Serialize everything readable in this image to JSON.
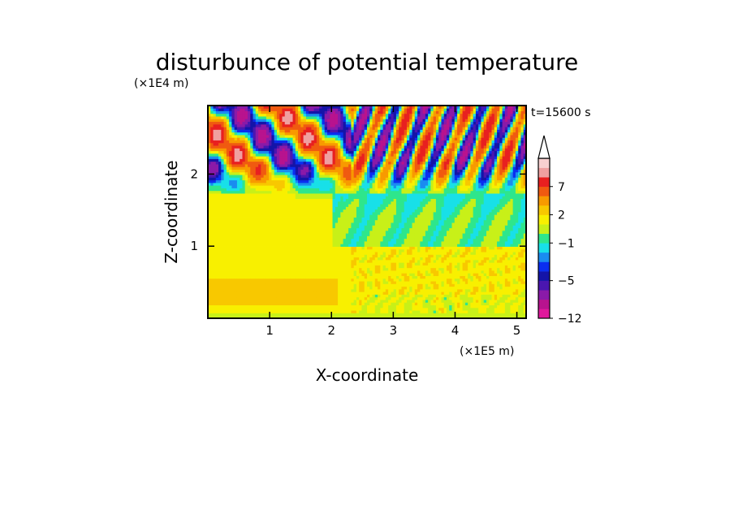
{
  "chart_data": {
    "type": "heatmap",
    "title": "disturbunce of potential temperature",
    "xlabel": "X-coordinate",
    "ylabel": "Z-coordinate",
    "x_unit": "(×1E5 m)",
    "y_unit": "(×1E4 m)",
    "time_label": "t=15600 s",
    "xlim": [
      0,
      5.15
    ],
    "ylim": [
      0,
      2.95
    ],
    "x_ticks": [
      {
        "v": 1,
        "label": "1"
      },
      {
        "v": 2,
        "label": "2"
      },
      {
        "v": 3,
        "label": "3"
      },
      {
        "v": 4,
        "label": "4"
      },
      {
        "v": 5,
        "label": "5"
      }
    ],
    "y_ticks": [
      {
        "v": 1,
        "label": "1"
      },
      {
        "v": 2,
        "label": "2"
      }
    ],
    "colorbar": {
      "levels": [
        -12,
        -10,
        -8,
        -6,
        -5,
        -4,
        -3,
        -2,
        -1,
        0,
        1,
        2,
        3,
        5,
        7,
        9,
        11
      ],
      "colors": [
        "#e0189c",
        "#b8138e",
        "#8a1aa8",
        "#4a16b0",
        "#1414a8",
        "#0a2ef0",
        "#1a8cf0",
        "#18e0e8",
        "#2ee68c",
        "#c8f018",
        "#f8f000",
        "#f8c800",
        "#f89a00",
        "#f05a10",
        "#e82020",
        "#f0a0a0",
        "#f8d0d0"
      ],
      "tick_labels": [
        {
          "v": -12,
          "label": "−12"
        },
        {
          "v": -5,
          "label": "−5"
        },
        {
          "v": -1,
          "label": "−1"
        },
        {
          "v": 2,
          "label": "2"
        },
        {
          "v": 7,
          "label": "7"
        }
      ],
      "extend": "max"
    }
  }
}
